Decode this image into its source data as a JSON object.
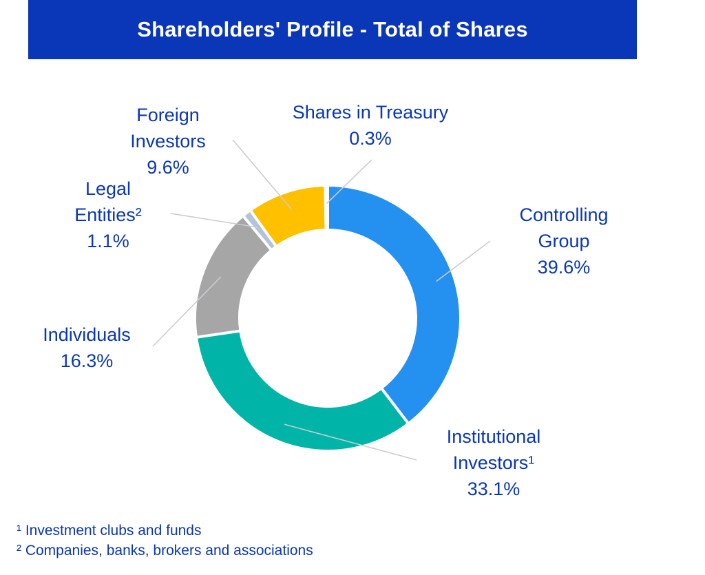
{
  "chart_data": {
    "type": "pie",
    "title": "Shareholders' Profile - Total of Shares",
    "donut": true,
    "slices": [
      {
        "label_lines": [
          "Controlling",
          "Group"
        ],
        "value": 39.6,
        "value_label": "39.6%",
        "color": "#2490f0"
      },
      {
        "label_lines": [
          "Institutional",
          "Investors¹"
        ],
        "value": 33.1,
        "value_label": "33.1%",
        "color": "#00b4a8"
      },
      {
        "label_lines": [
          "Individuals"
        ],
        "value": 16.3,
        "value_label": "16.3%",
        "color": "#a6a6a6"
      },
      {
        "label_lines": [
          "Legal",
          "Entities²"
        ],
        "value": 1.1,
        "value_label": "1.1%",
        "color": "#b3c3dc"
      },
      {
        "label_lines": [
          "Foreign",
          "Investors"
        ],
        "value": 9.6,
        "value_label": "9.6%",
        "color": "#ffc000"
      },
      {
        "label_lines": [
          "Shares in Treasury"
        ],
        "value": 0.3,
        "value_label": "0.3%",
        "color": "#e9eef6"
      }
    ]
  },
  "footnotes": [
    "¹ Investment clubs and funds",
    "² Companies, banks, brokers and associations"
  ],
  "colors": {
    "title_bg": "#0a36b8",
    "text": "#0a36b8",
    "leader": "#c8ccd4"
  }
}
